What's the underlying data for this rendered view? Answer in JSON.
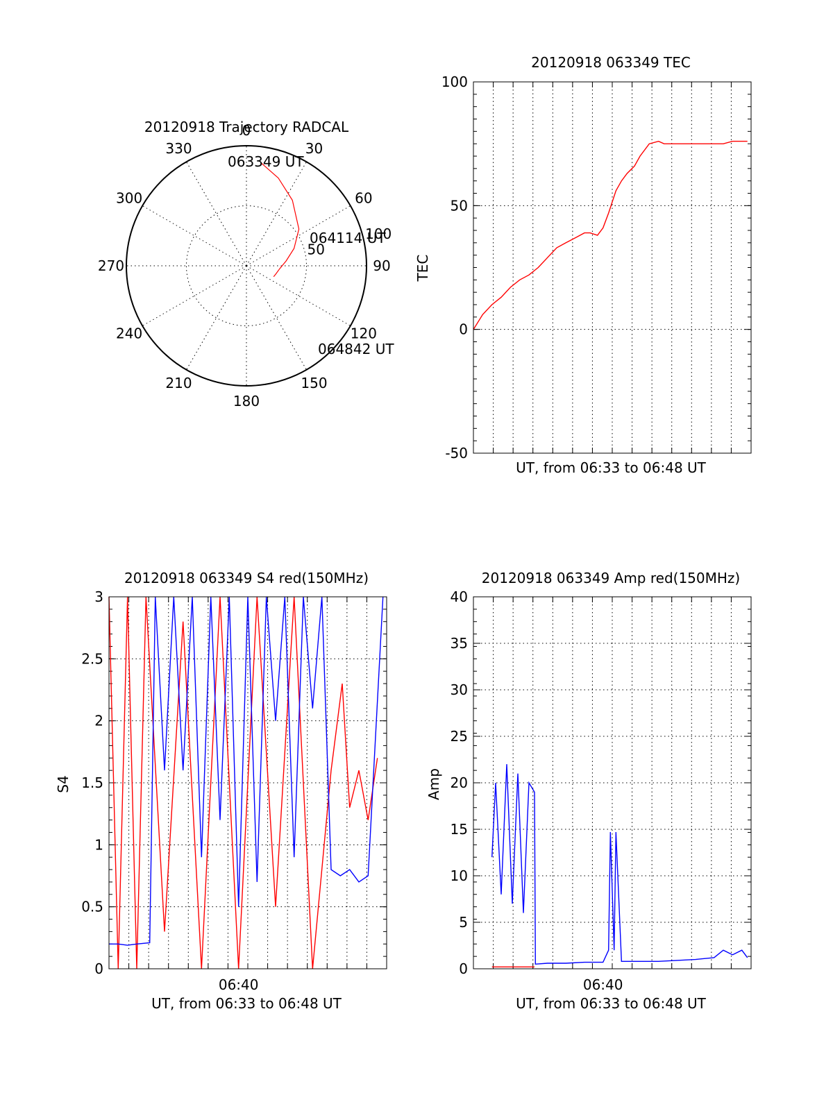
{
  "colors": {
    "red": "#ff0000",
    "blue": "#0000ff",
    "axis": "#000000"
  },
  "chart_data": [
    {
      "type": "scatter",
      "id": "trajectory",
      "title": "20120918 Trajectory RADCAL",
      "projection": "polar",
      "azimuth_labels": [
        "0",
        "30",
        "60",
        "90",
        "120",
        "150",
        "180",
        "210",
        "240",
        "270",
        "300",
        "330"
      ],
      "ring_labels": [
        "50",
        "100"
      ],
      "ring_values": [
        50,
        100
      ],
      "r_max": 100,
      "annotations": [
        "063349 UT",
        "064114 UT",
        "064842 UT"
      ],
      "series": [
        {
          "color": "red",
          "az": [
            8,
            20,
            35,
            55,
            70,
            83,
            95,
            105,
            112
          ],
          "el": [
            12,
            20,
            30,
            42,
            52,
            60,
            65,
            67,
            68
          ]
        }
      ]
    },
    {
      "type": "line",
      "id": "tec",
      "title": "20120918 063349 TEC",
      "xlabel": "UT, from 06:33 to 06:48 UT",
      "ylabel": "TEC",
      "ylim": [
        -50,
        100
      ],
      "yticks": [
        "-50",
        "0",
        "50",
        "100"
      ],
      "ytick_values": [
        -50,
        0,
        50,
        100
      ],
      "xlim": [
        0,
        15
      ],
      "series": [
        {
          "color": "red",
          "x": [
            0,
            0.5,
            1,
            1.5,
            2,
            2.5,
            3,
            3.5,
            4,
            4.5,
            5,
            5.5,
            6,
            6.3,
            6.7,
            7,
            7.3,
            7.7,
            8,
            8.3,
            8.7,
            9,
            9.5,
            10,
            10.3,
            10.7,
            11,
            11.4,
            11.7,
            12,
            12.5,
            13,
            13.5,
            14,
            14.5,
            14.8
          ],
          "y": [
            0,
            6,
            10,
            13,
            17,
            20,
            22,
            25,
            29,
            33,
            35,
            37,
            39,
            39,
            38,
            41,
            47,
            56,
            60,
            63,
            66,
            70,
            75,
            76,
            75,
            75,
            75,
            75,
            75,
            75,
            75,
            75,
            75,
            76,
            76,
            76
          ]
        }
      ]
    },
    {
      "type": "line",
      "id": "s4",
      "title": "20120918 063349 S4 red(150MHz)",
      "xlabel": "UT, from 06:33 to 06:48 UT",
      "ylabel": "S4",
      "ylim": [
        0,
        3
      ],
      "yticks": [
        "0",
        "0.5",
        "1",
        "1.5",
        "2",
        "2.5",
        "3"
      ],
      "ytick_values": [
        0,
        0.5,
        1,
        1.5,
        2,
        2.5,
        3
      ],
      "xticks": [
        "06:40"
      ],
      "xtick_values": [
        7
      ],
      "xlim": [
        0,
        15
      ],
      "series": [
        {
          "color": "red",
          "x": [
            0,
            0.5,
            1,
            1.5,
            2,
            3,
            4,
            5,
            6,
            7,
            8,
            9,
            10,
            11,
            12,
            12.6,
            13,
            13.5,
            14,
            14.5
          ],
          "y": [
            3,
            0,
            3,
            0,
            3,
            0.3,
            2.8,
            0,
            3,
            0,
            3,
            0.5,
            3,
            0,
            1.6,
            2.3,
            1.3,
            1.6,
            1.2,
            1.7
          ]
        },
        {
          "color": "blue",
          "x": [
            0,
            0.5,
            1,
            1.5,
            2.2,
            2.5,
            3,
            3.5,
            4,
            4.5,
            5,
            5.5,
            6,
            6.5,
            7,
            7.5,
            8,
            8.5,
            9,
            9.5,
            10,
            10.5,
            11,
            11.5,
            12,
            12.5,
            13,
            13.5,
            14,
            14.8
          ],
          "y": [
            0.2,
            0.2,
            0.19,
            0.2,
            0.21,
            3,
            1.6,
            3,
            1.6,
            3,
            0.9,
            3,
            1.2,
            3,
            0.5,
            3,
            0.7,
            3,
            2.0,
            3,
            0.9,
            3,
            2.1,
            3,
            0.8,
            0.75,
            0.8,
            0.7,
            0.75,
            3
          ]
        }
      ]
    },
    {
      "type": "line",
      "id": "amp",
      "title": "20120918 063349 Amp red(150MHz)",
      "xlabel": "UT, from 06:33 to 06:48 UT",
      "ylabel": "Amp",
      "ylim": [
        0,
        40
      ],
      "yticks": [
        "0",
        "5",
        "10",
        "15",
        "20",
        "25",
        "30",
        "35",
        "40"
      ],
      "ytick_values": [
        0,
        5,
        10,
        15,
        20,
        25,
        30,
        35,
        40
      ],
      "xticks": [
        "06:40"
      ],
      "xtick_values": [
        7
      ],
      "xlim": [
        0,
        15
      ],
      "series": [
        {
          "color": "red",
          "x": [
            1,
            1.5,
            2,
            2.5,
            3,
            3.3
          ],
          "y": [
            0.2,
            0.2,
            0.2,
            0.2,
            0.2,
            0.2
          ]
        },
        {
          "color": "blue",
          "x": [
            1,
            1.2,
            1.5,
            1.8,
            2.1,
            2.4,
            2.7,
            3.0,
            3.3,
            3.35,
            4,
            5,
            6,
            7,
            7.3,
            7.4,
            7.6,
            7.7,
            8,
            9,
            10,
            11,
            12,
            13,
            13.5,
            14,
            14.5,
            14.8
          ],
          "y": [
            12,
            20,
            8,
            22,
            7,
            21,
            6,
            20,
            19,
            0.5,
            0.6,
            0.6,
            0.7,
            0.7,
            2,
            14.7,
            2,
            14.7,
            0.8,
            0.8,
            0.8,
            0.9,
            1.0,
            1.2,
            2.0,
            1.5,
            2.0,
            1.2
          ]
        }
      ]
    }
  ]
}
